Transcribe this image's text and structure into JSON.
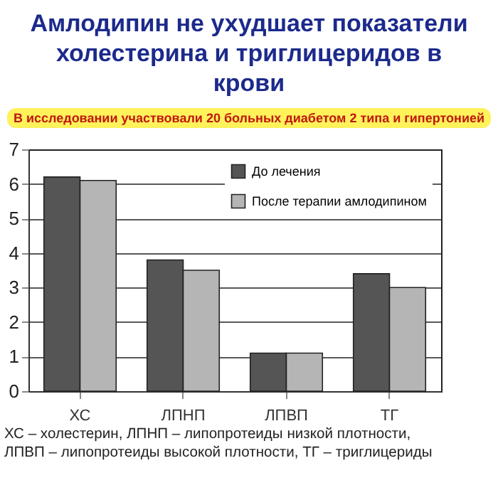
{
  "chart_data": {
    "type": "bar",
    "title": "Амлодипин не ухудшает показатели холестерина и триглицеридов в крови",
    "subtitle": "В исследовании участвовали 20 больных диабетом 2 типа и гипертонией",
    "categories": [
      "ХС",
      "ЛПНП",
      "ЛПВП",
      "ТГ"
    ],
    "series": [
      {
        "name": "До лечения",
        "color": "#555555",
        "values": [
          6.2,
          3.8,
          1.1,
          3.4
        ]
      },
      {
        "name": "После терапии амлодипином",
        "color": "#b5b5b5",
        "values": [
          6.1,
          3.5,
          1.1,
          3.0
        ]
      }
    ],
    "ylim": [
      0,
      7
    ],
    "yticks": [
      0,
      1,
      2,
      3,
      4,
      5,
      6,
      7
    ],
    "grid": "y",
    "legend": "top right",
    "annotations": [
      "ХС – холестерин, ЛПНП – липопротеиды низкой плотности,",
      "ЛПВП – липопротеиды высокой плотности, ТГ – триглицериды"
    ]
  }
}
